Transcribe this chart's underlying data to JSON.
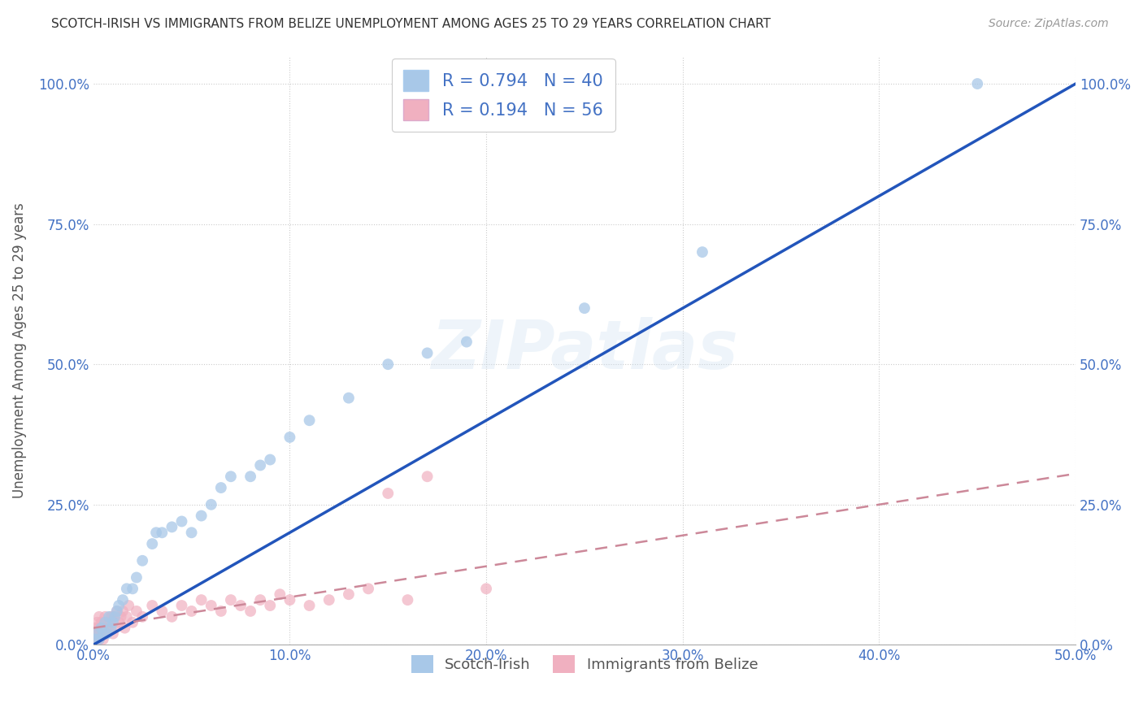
{
  "title": "SCOTCH-IRISH VS IMMIGRANTS FROM BELIZE UNEMPLOYMENT AMONG AGES 25 TO 29 YEARS CORRELATION CHART",
  "source": "Source: ZipAtlas.com",
  "ylabel": "Unemployment Among Ages 25 to 29 years",
  "xlim": [
    0,
    0.5
  ],
  "ylim": [
    0,
    1.05
  ],
  "watermark": "ZIPatlas",
  "legend_label1": "Scotch-Irish",
  "legend_label2": "Immigrants from Belize",
  "legend_R1": "R = 0.794",
  "legend_N1": "N = 40",
  "legend_R2": "R = 0.194",
  "legend_N2": "N = 56",
  "color_blue": "#A8C8E8",
  "color_pink": "#F0B0C0",
  "color_line_blue": "#2255BB",
  "color_line_pink": "#CC8899",
  "si_x": [
    0.001,
    0.002,
    0.003,
    0.004,
    0.005,
    0.006,
    0.007,
    0.008,
    0.009,
    0.01,
    0.011,
    0.012,
    0.013,
    0.015,
    0.017,
    0.02,
    0.022,
    0.025,
    0.03,
    0.032,
    0.035,
    0.04,
    0.045,
    0.05,
    0.055,
    0.06,
    0.065,
    0.07,
    0.08,
    0.085,
    0.09,
    0.1,
    0.11,
    0.13,
    0.15,
    0.17,
    0.19,
    0.25,
    0.31,
    0.45
  ],
  "si_y": [
    0.01,
    0.02,
    0.01,
    0.03,
    0.02,
    0.04,
    0.02,
    0.05,
    0.03,
    0.04,
    0.05,
    0.06,
    0.07,
    0.08,
    0.1,
    0.1,
    0.12,
    0.15,
    0.18,
    0.2,
    0.2,
    0.21,
    0.22,
    0.2,
    0.23,
    0.25,
    0.28,
    0.3,
    0.3,
    0.32,
    0.33,
    0.37,
    0.4,
    0.44,
    0.5,
    0.52,
    0.54,
    0.6,
    0.7,
    1.0
  ],
  "bz_x": [
    0.0,
    0.0,
    0.001,
    0.001,
    0.001,
    0.002,
    0.002,
    0.002,
    0.003,
    0.003,
    0.003,
    0.004,
    0.004,
    0.005,
    0.005,
    0.006,
    0.006,
    0.007,
    0.008,
    0.009,
    0.01,
    0.01,
    0.011,
    0.012,
    0.013,
    0.014,
    0.015,
    0.016,
    0.017,
    0.018,
    0.02,
    0.022,
    0.025,
    0.03,
    0.035,
    0.04,
    0.045,
    0.05,
    0.055,
    0.06,
    0.065,
    0.07,
    0.075,
    0.08,
    0.085,
    0.09,
    0.095,
    0.1,
    0.11,
    0.12,
    0.13,
    0.14,
    0.15,
    0.16,
    0.17,
    0.2
  ],
  "bz_y": [
    0.0,
    0.01,
    0.0,
    0.02,
    0.03,
    0.0,
    0.02,
    0.04,
    0.01,
    0.03,
    0.05,
    0.02,
    0.04,
    0.01,
    0.03,
    0.02,
    0.05,
    0.03,
    0.04,
    0.05,
    0.02,
    0.05,
    0.03,
    0.06,
    0.04,
    0.05,
    0.06,
    0.03,
    0.05,
    0.07,
    0.04,
    0.06,
    0.05,
    0.07,
    0.06,
    0.05,
    0.07,
    0.06,
    0.08,
    0.07,
    0.06,
    0.08,
    0.07,
    0.06,
    0.08,
    0.07,
    0.09,
    0.08,
    0.07,
    0.08,
    0.09,
    0.1,
    0.27,
    0.08,
    0.3,
    0.1
  ]
}
